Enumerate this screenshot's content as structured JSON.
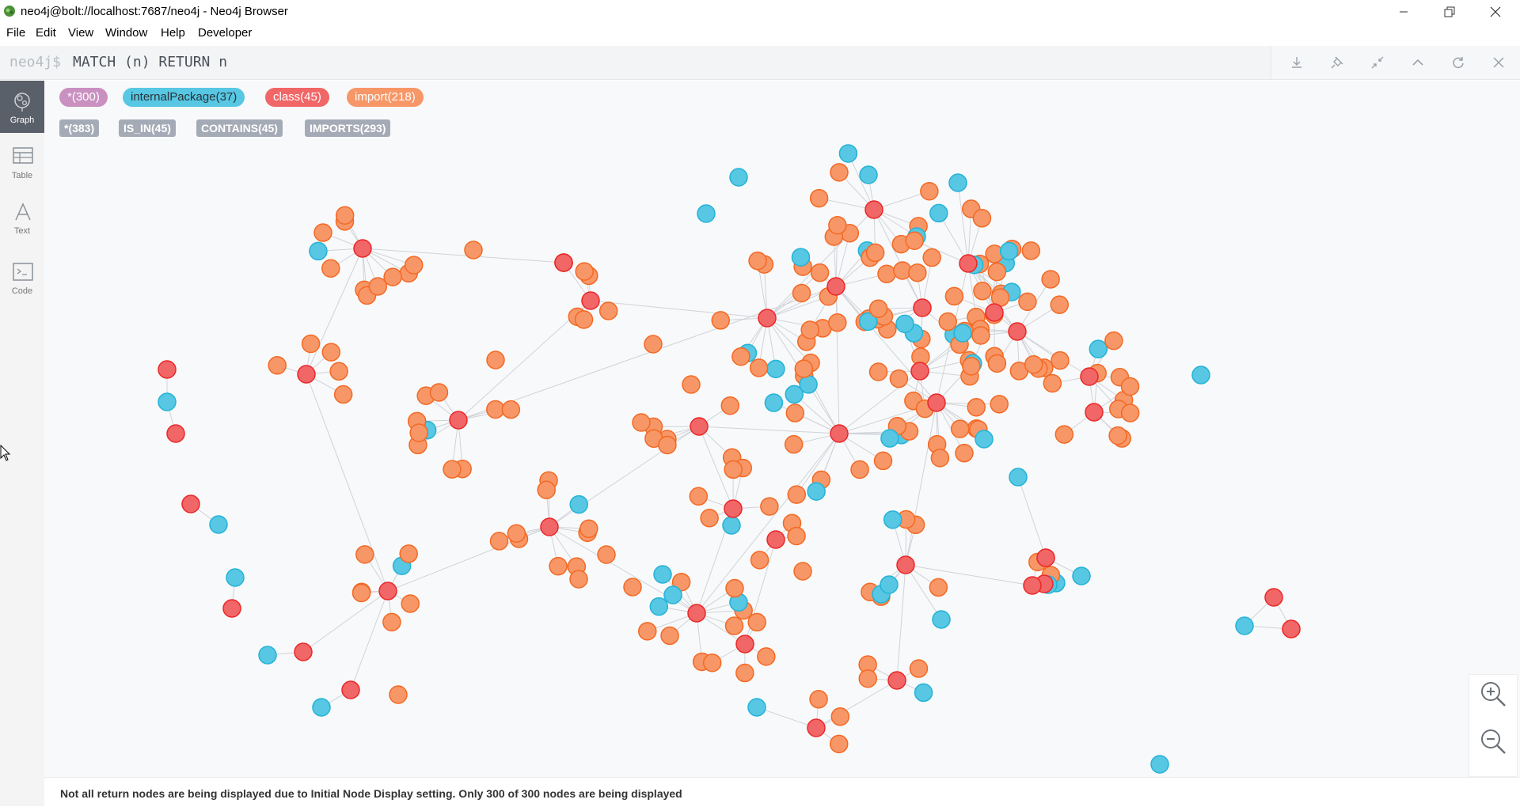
{
  "window": {
    "title": "neo4j@bolt://localhost:7687/neo4j - Neo4j Browser"
  },
  "menu": [
    "File",
    "Edit",
    "View",
    "Window",
    "Help",
    "Developer"
  ],
  "editor": {
    "prompt": "neo4j$",
    "query": "MATCH (n) RETURN n",
    "buttons": [
      "download-icon",
      "pin-icon",
      "shrink-icon",
      "collapse-up-icon",
      "rerun-icon",
      "close-icon"
    ]
  },
  "sidebar": {
    "tabs": [
      {
        "label": "Graph",
        "icon": "graph-icon",
        "active": true
      },
      {
        "label": "Table",
        "icon": "table-icon",
        "active": false
      },
      {
        "label": "Text",
        "icon": "text-icon",
        "active": false
      },
      {
        "label": "Code",
        "icon": "code-icon",
        "active": false
      }
    ]
  },
  "labels": [
    {
      "text": "*(300)",
      "color": "#c990c0"
    },
    {
      "text": "internalPackage(37)",
      "color": "#57c7e3"
    },
    {
      "text": "class(45)",
      "color": "#f16667"
    },
    {
      "text": "import(218)",
      "color": "#f79767"
    }
  ],
  "relationships": [
    {
      "text": "*(383)"
    },
    {
      "text": "IS_IN(45)"
    },
    {
      "text": "CONTAINS(45)"
    },
    {
      "text": "IMPORTS(293)"
    }
  ],
  "colors": {
    "class": "#f16667",
    "internalPackage": "#57c7e3",
    "import": "#f79767",
    "edge": "#cfd3d8"
  },
  "status": {
    "message": "Not all return nodes are being displayed due to Initial Node Display setting. Only 300 of 300 nodes are being displayed"
  },
  "zoom": {
    "in_icon": "zoom-in-icon",
    "out_icon": "zoom-out-icon"
  }
}
